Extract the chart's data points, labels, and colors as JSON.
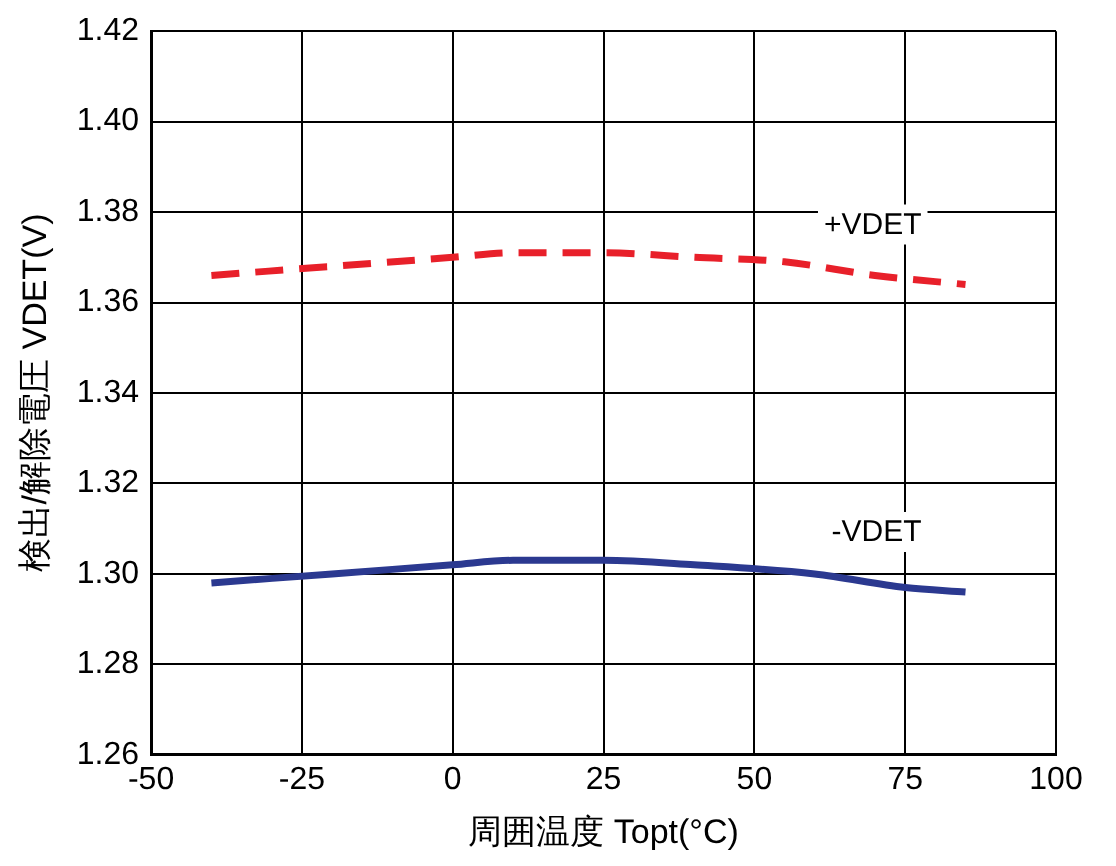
{
  "chart_data": {
    "type": "line",
    "xlabel": "周囲温度 Topt(°C)",
    "ylabel": "検出/解除電圧 VDET(V)",
    "xlim": [
      -50,
      100
    ],
    "xticks": [
      -50,
      -25,
      0,
      25,
      50,
      75,
      100
    ],
    "ylim": [
      1.26,
      1.42
    ],
    "yticks": [
      1.26,
      1.28,
      {
        "value": 1.3,
        "label": "1.30"
      },
      1.32,
      1.34,
      1.36,
      1.38,
      {
        "value": 1.4,
        "label": "1.40"
      },
      1.42
    ],
    "grid": true,
    "legend": false,
    "marker": "none",
    "series": [
      {
        "name": "+VDET",
        "color": "#e8202a",
        "line_style": "dashed",
        "x": [
          -40,
          -20,
          0,
          10,
          25,
          40,
          55,
          70,
          85
        ],
        "values": [
          1.366,
          1.368,
          1.37,
          1.371,
          1.371,
          1.37,
          1.369,
          1.366,
          1.364
        ]
      },
      {
        "name": "-VDET",
        "color": "#2b3990",
        "line_style": "solid",
        "x": [
          -40,
          -20,
          0,
          10,
          25,
          40,
          60,
          75,
          85
        ],
        "values": [
          1.298,
          1.3,
          1.302,
          1.303,
          1.303,
          1.302,
          1.3,
          1.297,
          1.296
        ]
      }
    ]
  }
}
